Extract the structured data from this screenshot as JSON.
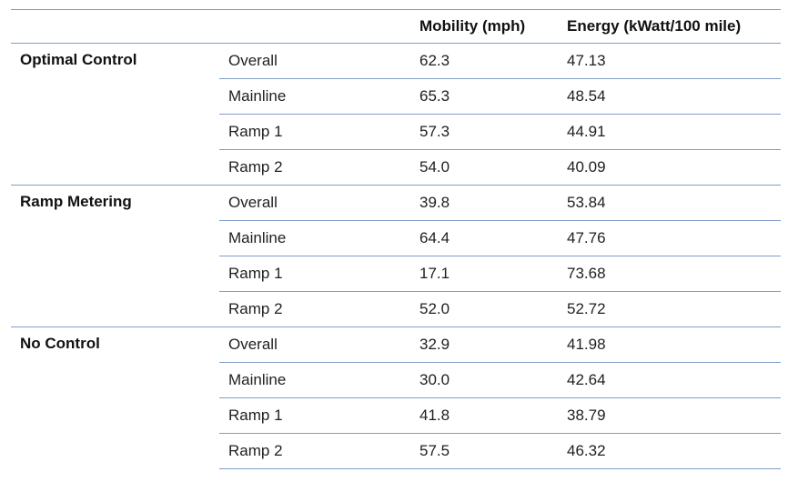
{
  "table": {
    "headers": {
      "group": "",
      "segment": "",
      "mobility": "Mobility (mph)",
      "energy": "Energy (kWatt/100 mile)"
    },
    "groups": [
      {
        "name": "Optimal Control",
        "rows": [
          {
            "segment": "Overall",
            "mobility": "62.3",
            "energy": "47.13"
          },
          {
            "segment": "Mainline",
            "mobility": "65.3",
            "energy": "48.54"
          },
          {
            "segment": "Ramp 1",
            "mobility": "57.3",
            "energy": "44.91"
          },
          {
            "segment": "Ramp 2",
            "mobility": "54.0",
            "energy": "40.09"
          }
        ]
      },
      {
        "name": "Ramp Metering",
        "rows": [
          {
            "segment": "Overall",
            "mobility": "39.8",
            "energy": "53.84"
          },
          {
            "segment": "Mainline",
            "mobility": "64.4",
            "energy": "47.76"
          },
          {
            "segment": "Ramp 1",
            "mobility": "17.1",
            "energy": "73.68"
          },
          {
            "segment": "Ramp 2",
            "mobility": "52.0",
            "energy": "52.72"
          }
        ]
      },
      {
        "name": "No Control",
        "rows": [
          {
            "segment": "Overall",
            "mobility": "32.9",
            "energy": "41.98"
          },
          {
            "segment": "Mainline",
            "mobility": "30.0",
            "energy": "42.64"
          },
          {
            "segment": "Ramp 1",
            "mobility": "41.8",
            "energy": "38.79"
          },
          {
            "segment": "Ramp 2",
            "mobility": "57.5",
            "energy": "46.32"
          }
        ]
      }
    ],
    "border_color": "#7f9ec9"
  }
}
